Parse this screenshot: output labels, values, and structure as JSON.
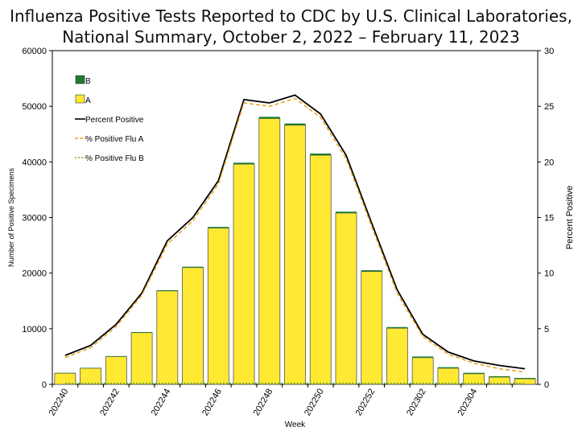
{
  "chart_data": {
    "type": "bar",
    "title_line1": "Influenza Positive Tests Reported to CDC by U.S. Clinical Laboratories,",
    "title_line2": "National Summary, October 2, 2022 – February 11, 2023",
    "xlabel": "Week",
    "ylabel": "Number of Positive Specimens",
    "y2label": "Percent Positive",
    "ylim": [
      0,
      60000
    ],
    "y2lim": [
      0,
      30
    ],
    "yticks": [
      "0",
      "10000",
      "20000",
      "30000",
      "40000",
      "50000",
      "60000"
    ],
    "y2ticks": [
      "0",
      "5",
      "10",
      "15",
      "20",
      "25",
      "30"
    ],
    "categories": [
      "202240",
      "202241",
      "202242",
      "202243",
      "202244",
      "202245",
      "202246",
      "202247",
      "202248",
      "202249",
      "202250",
      "202251",
      "202252",
      "202301",
      "202302",
      "202303",
      "202304",
      "202305",
      "202306"
    ],
    "xtick_labels": [
      "202240",
      "",
      "202242",
      "",
      "202244",
      "",
      "202246",
      "",
      "202248",
      "",
      "202250",
      "",
      "202252",
      "",
      "202302",
      "",
      "202304",
      "",
      ""
    ],
    "series": [
      {
        "name": "B",
        "color": "#1a7a2e",
        "values": [
          60,
          70,
          80,
          100,
          120,
          150,
          200,
          250,
          300,
          300,
          300,
          250,
          220,
          200,
          200,
          180,
          170,
          160,
          150
        ]
      },
      {
        "name": "A",
        "color": "#ffe933",
        "values": [
          2000,
          2900,
          5000,
          9300,
          16800,
          21000,
          28100,
          39600,
          47800,
          46600,
          41200,
          30800,
          20300,
          10100,
          4800,
          2900,
          1900,
          1300,
          1000
        ]
      }
    ],
    "lines": [
      {
        "name": "Percent Positive",
        "color": "#000000",
        "style": "solid",
        "values": [
          2.6,
          3.5,
          5.4,
          8.2,
          12.9,
          15.0,
          18.3,
          25.6,
          25.3,
          26.0,
          24.3,
          20.6,
          14.5,
          8.5,
          4.5,
          2.9,
          2.1,
          1.7,
          1.4
        ]
      },
      {
        "name": "% Positive Flu A",
        "color": "#e8a317",
        "style": "dashed",
        "values": [
          2.4,
          3.3,
          5.2,
          8.0,
          12.6,
          14.7,
          18.0,
          25.3,
          25.0,
          25.7,
          24.0,
          20.3,
          14.2,
          8.2,
          4.3,
          2.7,
          1.9,
          1.4,
          1.1
        ]
      },
      {
        "name": "% Positive Flu B",
        "color": "#7ab62a",
        "style": "dotted",
        "values": [
          0.1,
          0.1,
          0.1,
          0.1,
          0.1,
          0.1,
          0.1,
          0.1,
          0.1,
          0.1,
          0.1,
          0.1,
          0.1,
          0.1,
          0.1,
          0.1,
          0.1,
          0.1,
          0.1
        ]
      }
    ],
    "legend": [
      {
        "label": "B",
        "kind": "box",
        "color": "#1a7a2e"
      },
      {
        "label": "A",
        "kind": "box",
        "color": "#ffe933"
      },
      {
        "label": "Percent Positive",
        "kind": "line",
        "color": "#000000",
        "style": "solid"
      },
      {
        "label": "% Positive Flu A",
        "kind": "line",
        "color": "#e8a317",
        "style": "dashed"
      },
      {
        "label": "% Positive Flu B",
        "kind": "line",
        "color": "#7ab62a",
        "style": "dotted"
      }
    ],
    "legend_position": "top-left",
    "grid": false
  }
}
